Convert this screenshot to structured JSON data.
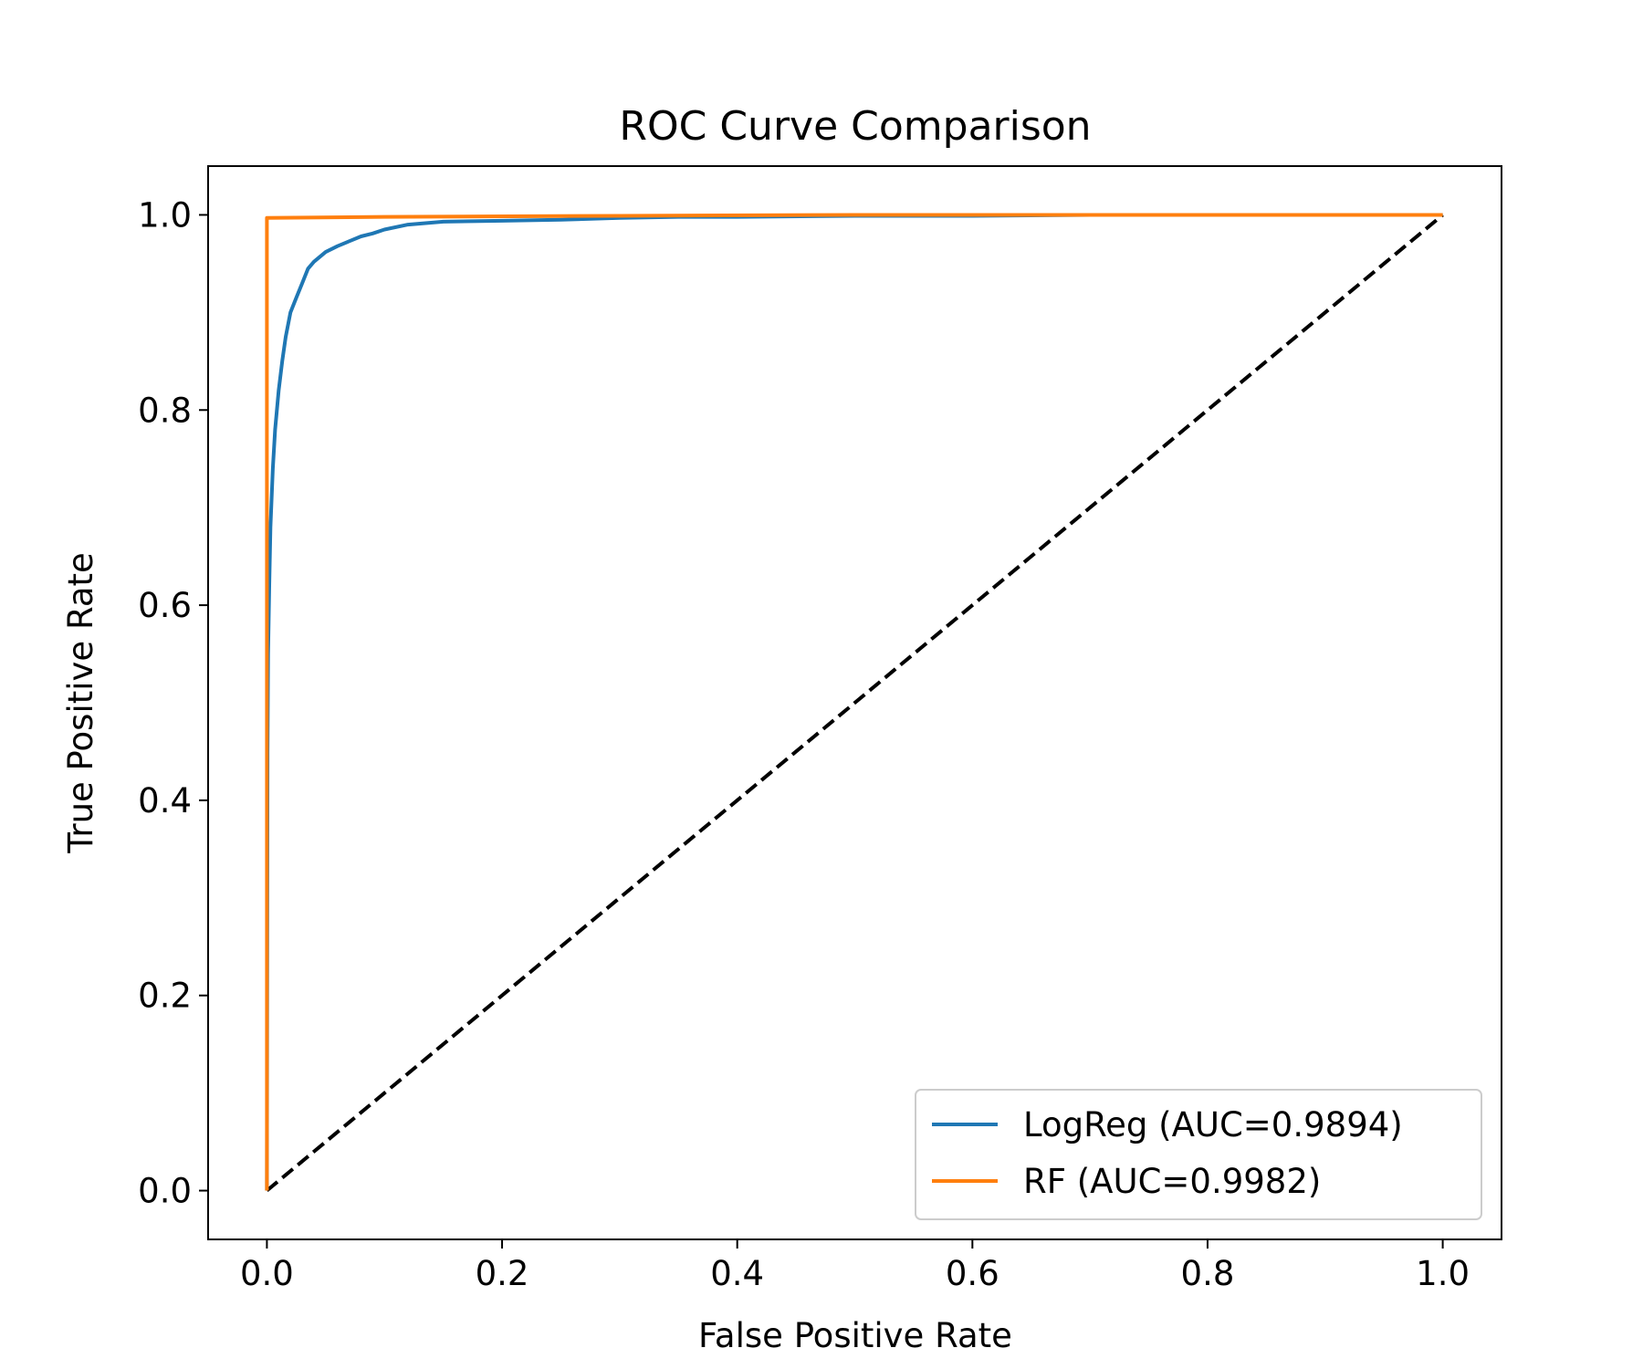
{
  "chart_data": {
    "type": "line",
    "title": "ROC Curve Comparison",
    "xlabel": "False Positive Rate",
    "ylabel": "True Positive Rate",
    "xlim": [
      -0.05,
      1.05
    ],
    "ylim": [
      -0.05,
      1.05
    ],
    "xticks": [
      "0.0",
      "0.2",
      "0.4",
      "0.6",
      "0.8",
      "1.0"
    ],
    "yticks": [
      "0.0",
      "0.2",
      "0.4",
      "0.6",
      "0.8",
      "1.0"
    ],
    "grid": false,
    "legend_position": "lower-right",
    "series": [
      {
        "name": "LogReg (AUC=0.9894)",
        "color": "#1f77b4",
        "x": [
          0,
          0.0005,
          0.001,
          0.002,
          0.003,
          0.005,
          0.007,
          0.01,
          0.013,
          0.016,
          0.02,
          0.025,
          0.03,
          0.035,
          0.04,
          0.05,
          0.06,
          0.07,
          0.08,
          0.09,
          0.1,
          0.12,
          0.15,
          0.2,
          0.25,
          0.3,
          0.35,
          0.4,
          0.5,
          0.6,
          0.7,
          0.8,
          0.9,
          1.0
        ],
        "y": [
          0,
          0.45,
          0.55,
          0.62,
          0.68,
          0.74,
          0.78,
          0.82,
          0.85,
          0.875,
          0.9,
          0.915,
          0.93,
          0.945,
          0.952,
          0.962,
          0.968,
          0.973,
          0.978,
          0.981,
          0.985,
          0.99,
          0.993,
          0.994,
          0.995,
          0.997,
          0.998,
          0.998,
          0.999,
          0.999,
          1.0,
          1.0,
          1.0,
          1.0
        ]
      },
      {
        "name": "RF (AUC=0.9982)",
        "color": "#ff7f0e",
        "x": [
          0,
          0,
          0.001,
          0.1,
          0.3,
          0.5,
          1.0
        ],
        "y": [
          0,
          0.997,
          0.997,
          0.998,
          0.999,
          1.0,
          1.0
        ]
      },
      {
        "color": "#000000",
        "style": "dashed",
        "x": [
          0,
          1
        ],
        "y": [
          0,
          1
        ]
      }
    ]
  }
}
